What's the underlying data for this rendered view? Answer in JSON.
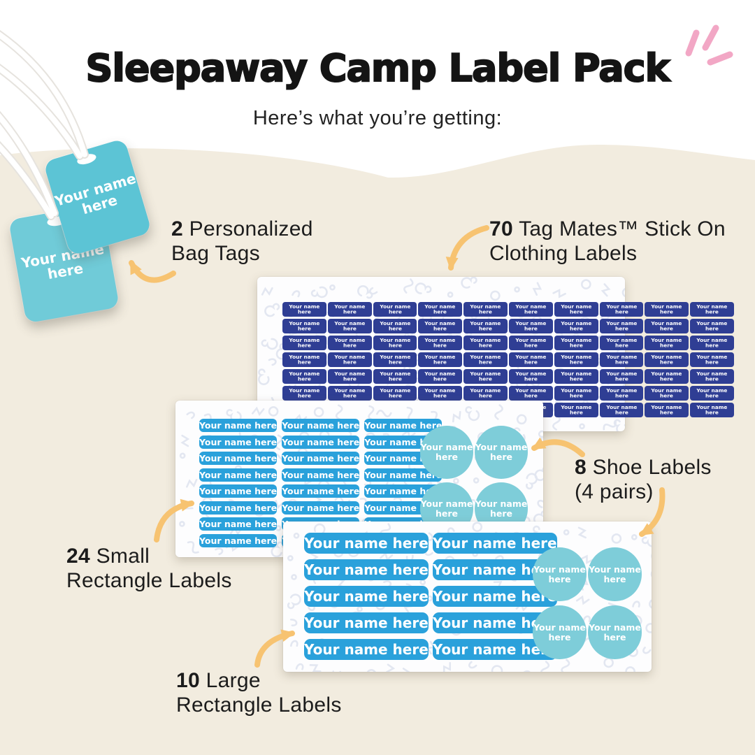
{
  "page": {
    "title": "Sleepaway Camp Label Pack",
    "subtitle": "Here’s what you’re getting:"
  },
  "labels": {
    "full": "Your name here",
    "line1": "Your name",
    "line2": "here"
  },
  "callouts": {
    "bag_tags": {
      "count": "2",
      "rest": " Personalized",
      "line2": "Bag Tags"
    },
    "tag_mates": {
      "count": "70",
      "rest": " Tag Mates™ Stick On",
      "line2": "Clothing Labels"
    },
    "shoe": {
      "count": "8",
      "rest": " Shoe Labels",
      "line2": "(4 pairs)"
    },
    "small_rect": {
      "count": "24",
      "rest": " Small",
      "line2": "Rectangle Labels"
    },
    "large_rect": {
      "count": "10",
      "rest": " Large",
      "line2": "Rectangle Labels"
    }
  },
  "sheets": {
    "clothing": {
      "total": 70,
      "rows": 7,
      "cols": 10
    },
    "small": {
      "total": 24,
      "rows": 8,
      "cols": 3,
      "circles": 4
    },
    "large": {
      "total": 10,
      "rows": 5,
      "cols": 2,
      "circles": 4
    },
    "shoe_total": 8
  },
  "colors": {
    "cream_bg": "#f2ecdf",
    "navy_label": "#2f3e94",
    "blue_label": "#2aa1db",
    "teal_tag": "#5cc4d5",
    "teal_circle": "#7ecdd9",
    "arrow": "#f7c371",
    "pink_accent": "#f2a7c5",
    "text": "#1c1c1c"
  }
}
